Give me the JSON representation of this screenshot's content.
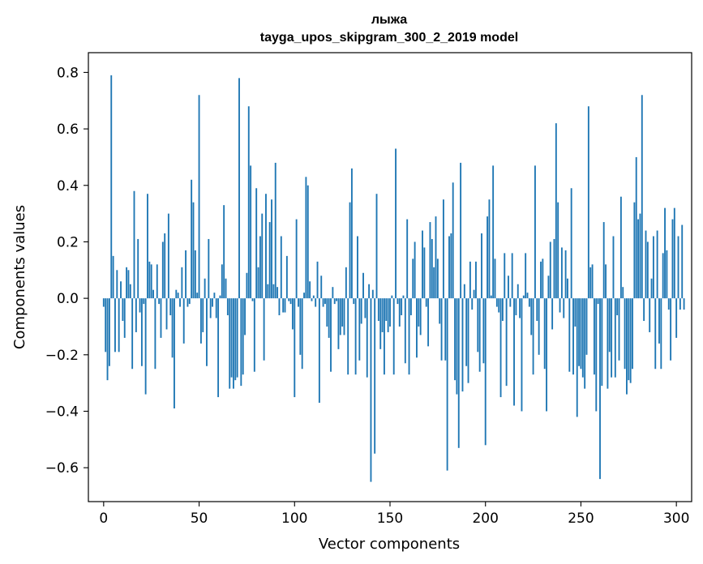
{
  "chart_data": {
    "type": "bar",
    "title_line1": "лыжа",
    "title_line2": "tayga_upos_skipgram_300_2_2019 model",
    "xlabel": "Vector components",
    "ylabel": "Components values",
    "xlim": [
      -8,
      308
    ],
    "ylim": [
      -0.72,
      0.87
    ],
    "xticks": [
      0,
      50,
      100,
      150,
      200,
      250,
      300
    ],
    "xtick_labels": [
      "0",
      "50",
      "100",
      "150",
      "200",
      "250",
      "300"
    ],
    "yticks": [
      -0.6,
      -0.4,
      -0.2,
      0.0,
      0.2,
      0.4,
      0.6,
      0.8
    ],
    "ytick_labels": [
      "−0.6",
      "−0.4",
      "−0.2",
      "0.0",
      "0.2",
      "0.4",
      "0.6",
      "0.8"
    ],
    "bar_color": "#1f77b4",
    "grid": false,
    "values": [
      -0.03,
      -0.19,
      -0.29,
      -0.24,
      0.79,
      0.15,
      -0.19,
      0.1,
      -0.19,
      0.06,
      -0.08,
      -0.14,
      0.11,
      0.1,
      0.05,
      -0.25,
      0.38,
      -0.12,
      0.21,
      -0.05,
      -0.24,
      -0.02,
      -0.34,
      0.37,
      0.13,
      0.12,
      0.03,
      -0.25,
      0.12,
      -0.02,
      -0.14,
      0.2,
      0.23,
      -0.11,
      0.3,
      -0.06,
      -0.21,
      -0.39,
      0.03,
      0.02,
      -0.03,
      0.11,
      -0.16,
      0.17,
      -0.03,
      -0.02,
      0.42,
      0.34,
      0.17,
      0.02,
      0.72,
      -0.16,
      -0.12,
      0.07,
      -0.24,
      0.21,
      -0.07,
      -0.03,
      0.02,
      -0.07,
      -0.35,
      0.01,
      0.12,
      0.33,
      0.07,
      -0.06,
      -0.32,
      -0.28,
      -0.32,
      -0.29,
      -0.28,
      0.78,
      -0.31,
      -0.27,
      -0.13,
      0.09,
      0.68,
      0.47,
      -0.01,
      -0.26,
      0.39,
      0.11,
      0.22,
      0.3,
      -0.22,
      0.37,
      0.05,
      0.27,
      0.35,
      0.05,
      0.48,
      0.04,
      -0.06,
      0.22,
      -0.05,
      -0.05,
      0.15,
      -0.01,
      -0.02,
      -0.11,
      -0.35,
      0.28,
      -0.03,
      -0.2,
      -0.25,
      0.02,
      0.43,
      0.4,
      0.06,
      -0.01,
      0.01,
      -0.03,
      0.13,
      -0.37,
      0.08,
      -0.03,
      -0.02,
      -0.1,
      -0.14,
      -0.26,
      0.04,
      -0.02,
      -0.01,
      -0.18,
      -0.13,
      -0.1,
      -0.13,
      0.11,
      -0.27,
      0.34,
      0.46,
      -0.02,
      -0.27,
      0.22,
      -0.22,
      -0.09,
      0.09,
      -0.07,
      -0.28,
      0.05,
      -0.65,
      0.03,
      -0.55,
      0.37,
      -0.08,
      -0.18,
      -0.12,
      -0.27,
      -0.08,
      -0.12,
      -0.1,
      0.01,
      -0.27,
      0.53,
      -0.02,
      -0.1,
      -0.06,
      0.01,
      -0.23,
      0.28,
      -0.27,
      -0.06,
      0.14,
      0.2,
      -0.21,
      -0.1,
      -0.13,
      0.24,
      0.18,
      -0.03,
      -0.17,
      0.27,
      0.21,
      0.11,
      0.29,
      0.14,
      -0.09,
      -0.22,
      0.35,
      -0.22,
      -0.61,
      0.22,
      0.23,
      0.41,
      -0.29,
      -0.34,
      -0.53,
      0.48,
      -0.33,
      0.05,
      -0.24,
      -0.3,
      0.13,
      -0.04,
      0.03,
      0.13,
      -0.19,
      -0.26,
      0.23,
      -0.23,
      -0.52,
      0.29,
      0.35,
      0.01,
      0.47,
      0.14,
      -0.03,
      -0.05,
      -0.35,
      -0.08,
      0.16,
      -0.31,
      0.08,
      -0.03,
      0.16,
      -0.38,
      -0.06,
      0.05,
      -0.07,
      -0.4,
      0.01,
      0.16,
      0.02,
      -0.03,
      -0.13,
      -0.27,
      0.47,
      -0.08,
      -0.2,
      0.13,
      0.14,
      -0.25,
      -0.4,
      0.08,
      0.2,
      -0.11,
      0.21,
      0.62,
      0.34,
      -0.05,
      0.18,
      -0.07,
      0.17,
      0.07,
      -0.26,
      0.39,
      -0.27,
      -0.1,
      -0.42,
      -0.24,
      -0.25,
      -0.28,
      -0.32,
      -0.2,
      0.68,
      0.11,
      0.12,
      -0.27,
      -0.4,
      -0.02,
      -0.64,
      -0.31,
      0.27,
      0.12,
      -0.32,
      -0.19,
      -0.28,
      0.22,
      -0.28,
      -0.06,
      -0.22,
      0.36,
      0.04,
      -0.25,
      -0.34,
      -0.29,
      -0.3,
      -0.25,
      0.34,
      0.5,
      0.28,
      0.3,
      0.72,
      -0.08,
      0.24,
      0.2,
      -0.12,
      0.07,
      0.22,
      -0.25,
      0.24,
      -0.16,
      -0.25,
      0.16,
      0.32,
      0.17,
      -0.04,
      -0.22,
      0.28,
      0.32,
      -0.14,
      0.22,
      -0.04,
      0.26,
      -0.04
    ]
  }
}
